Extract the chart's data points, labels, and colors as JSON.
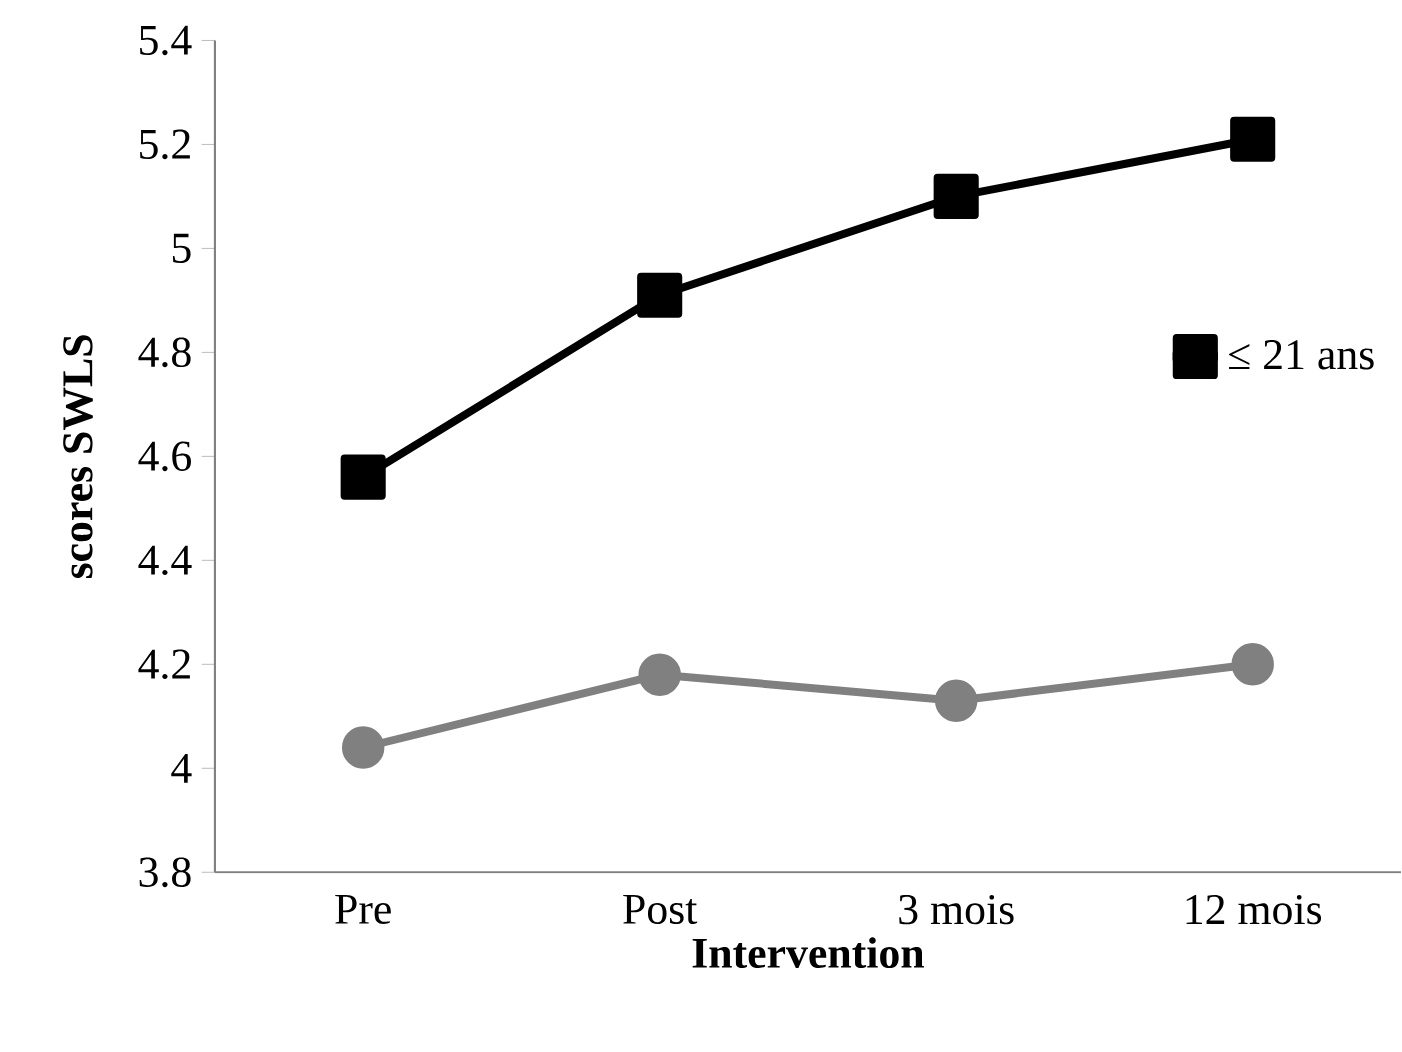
{
  "chart_data": {
    "type": "line",
    "xlabel": "Intervention",
    "ylabel": "scores SWLS",
    "categories": [
      "Pre",
      "Post",
      "3 mois",
      "12 mois"
    ],
    "series": [
      {
        "name": "≤ 21 ans",
        "color": "#000000",
        "marker": "square",
        "values": [
          4.56,
          4.91,
          5.1,
          5.21
        ]
      },
      {
        "color": "#808080",
        "marker": "circle",
        "values": [
          4.04,
          4.18,
          4.13,
          4.2
        ]
      }
    ],
    "ylim": [
      3.8,
      5.4
    ],
    "yticks": [
      3.8,
      4,
      4.2,
      4.4,
      4.6,
      4.8,
      5,
      5.2,
      5.4
    ],
    "legend": "right",
    "grid": false
  }
}
